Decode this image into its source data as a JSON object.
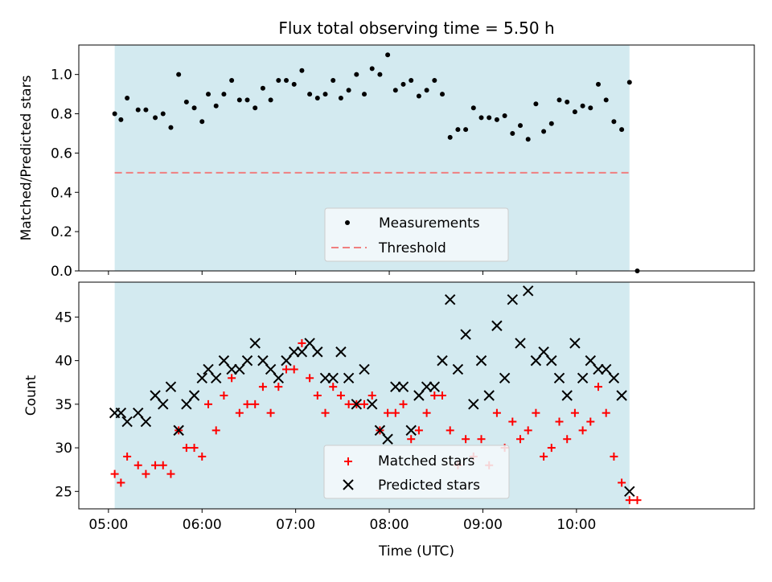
{
  "chart_data": [
    {
      "type": "scatter",
      "title": "Flux total observing time = 5.50 h",
      "xlabel": "",
      "ylabel": "Matched/Predicted stars",
      "ylim": [
        0,
        1.15
      ],
      "xlim_minutes": [
        281,
        714
      ],
      "yticks": [
        "0.0",
        "0.2",
        "0.4",
        "0.6",
        "0.8",
        "1.0"
      ],
      "ytick_values": [
        0,
        0.2,
        0.4,
        0.6,
        0.8,
        1.0
      ],
      "observing_window": [
        "05:04",
        "10:34"
      ],
      "observing_window_color": "#d3eaf0",
      "threshold": {
        "name": "Threshold",
        "value": 0.5,
        "color": "#f08080",
        "style": "dashed"
      },
      "legend": {
        "placement": "bottom-center",
        "entries": [
          "Measurements",
          "Threshold"
        ]
      },
      "series": [
        {
          "name": "Measurements",
          "marker": "dot",
          "color": "#000000",
          "points": [
            [
              "05:04",
              0.8
            ],
            [
              "05:08",
              0.77
            ],
            [
              "05:12",
              0.88
            ],
            [
              "05:19",
              0.82
            ],
            [
              "05:24",
              0.82
            ],
            [
              "05:30",
              0.78
            ],
            [
              "05:35",
              0.8
            ],
            [
              "05:40",
              0.73
            ],
            [
              "05:45",
              1.0
            ],
            [
              "05:50",
              0.86
            ],
            [
              "05:55",
              0.83
            ],
            [
              "06:00",
              0.76
            ],
            [
              "06:04",
              0.9
            ],
            [
              "06:09",
              0.84
            ],
            [
              "06:14",
              0.9
            ],
            [
              "06:19",
              0.97
            ],
            [
              "06:24",
              0.87
            ],
            [
              "06:29",
              0.87
            ],
            [
              "06:34",
              0.83
            ],
            [
              "06:39",
              0.93
            ],
            [
              "06:44",
              0.87
            ],
            [
              "06:49",
              0.97
            ],
            [
              "06:54",
              0.97
            ],
            [
              "06:59",
              0.95
            ],
            [
              "07:04",
              1.02
            ],
            [
              "07:09",
              0.9
            ],
            [
              "07:14",
              0.88
            ],
            [
              "07:19",
              0.9
            ],
            [
              "07:24",
              0.97
            ],
            [
              "07:29",
              0.88
            ],
            [
              "07:34",
              0.92
            ],
            [
              "07:39",
              1.0
            ],
            [
              "07:44",
              0.9
            ],
            [
              "07:49",
              1.03
            ],
            [
              "07:54",
              1.0
            ],
            [
              "07:59",
              1.1
            ],
            [
              "08:04",
              0.92
            ],
            [
              "08:09",
              0.95
            ],
            [
              "08:14",
              0.97
            ],
            [
              "08:19",
              0.89
            ],
            [
              "08:24",
              0.92
            ],
            [
              "08:29",
              0.97
            ],
            [
              "08:34",
              0.9
            ],
            [
              "08:39",
              0.68
            ],
            [
              "08:44",
              0.72
            ],
            [
              "08:49",
              0.72
            ],
            [
              "08:54",
              0.83
            ],
            [
              "08:59",
              0.78
            ],
            [
              "09:04",
              0.78
            ],
            [
              "09:09",
              0.77
            ],
            [
              "09:14",
              0.79
            ],
            [
              "09:19",
              0.7
            ],
            [
              "09:24",
              0.74
            ],
            [
              "09:29",
              0.67
            ],
            [
              "09:34",
              0.85
            ],
            [
              "09:39",
              0.71
            ],
            [
              "09:44",
              0.75
            ],
            [
              "09:49",
              0.87
            ],
            [
              "09:54",
              0.86
            ],
            [
              "09:59",
              0.81
            ],
            [
              "10:04",
              0.84
            ],
            [
              "10:09",
              0.83
            ],
            [
              "10:14",
              0.95
            ],
            [
              "10:19",
              0.87
            ],
            [
              "10:24",
              0.76
            ],
            [
              "10:29",
              0.72
            ],
            [
              "10:34",
              0.96
            ],
            [
              "10:39",
              0.0
            ]
          ]
        }
      ]
    },
    {
      "type": "scatter",
      "title": "",
      "xlabel": "Time (UTC)",
      "ylabel": "Count",
      "ylim": [
        23,
        49
      ],
      "xlim_minutes": [
        281,
        714
      ],
      "yticks": [
        "25",
        "30",
        "35",
        "40",
        "45"
      ],
      "ytick_values": [
        25,
        30,
        35,
        40,
        45
      ],
      "xticks": [
        "05:00",
        "06:00",
        "07:00",
        "08:00",
        "09:00",
        "10:00"
      ],
      "xtick_values": [
        300,
        360,
        420,
        480,
        540,
        600
      ],
      "observing_window": [
        "05:04",
        "10:34"
      ],
      "observing_window_color": "#d3eaf0",
      "legend": {
        "placement": "bottom-center",
        "entries": [
          "Matched stars",
          "Predicted stars"
        ]
      },
      "series": [
        {
          "name": "Matched stars",
          "marker": "plus",
          "color": "#ff0000",
          "points": [
            [
              "05:04",
              27
            ],
            [
              "05:08",
              26
            ],
            [
              "05:12",
              29
            ],
            [
              "05:19",
              28
            ],
            [
              "05:24",
              27
            ],
            [
              "05:30",
              28
            ],
            [
              "05:35",
              28
            ],
            [
              "05:40",
              27
            ],
            [
              "05:45",
              32
            ],
            [
              "05:50",
              30
            ],
            [
              "05:55",
              30
            ],
            [
              "06:00",
              29
            ],
            [
              "06:04",
              35
            ],
            [
              "06:09",
              32
            ],
            [
              "06:14",
              36
            ],
            [
              "06:19",
              38
            ],
            [
              "06:24",
              34
            ],
            [
              "06:29",
              35
            ],
            [
              "06:34",
              35
            ],
            [
              "06:39",
              37
            ],
            [
              "06:44",
              34
            ],
            [
              "06:49",
              37
            ],
            [
              "06:54",
              39
            ],
            [
              "06:59",
              39
            ],
            [
              "07:04",
              42
            ],
            [
              "07:09",
              38
            ],
            [
              "07:14",
              36
            ],
            [
              "07:19",
              34
            ],
            [
              "07:24",
              37
            ],
            [
              "07:29",
              36
            ],
            [
              "07:34",
              35
            ],
            [
              "07:39",
              35
            ],
            [
              "07:44",
              35
            ],
            [
              "07:49",
              36
            ],
            [
              "07:54",
              32
            ],
            [
              "07:59",
              34
            ],
            [
              "08:04",
              34
            ],
            [
              "08:09",
              35
            ],
            [
              "08:14",
              31
            ],
            [
              "08:19",
              32
            ],
            [
              "08:24",
              34
            ],
            [
              "08:29",
              36
            ],
            [
              "08:34",
              36
            ],
            [
              "08:39",
              32
            ],
            [
              "08:44",
              28
            ],
            [
              "08:49",
              31
            ],
            [
              "08:54",
              29
            ],
            [
              "08:59",
              31
            ],
            [
              "09:04",
              28
            ],
            [
              "09:09",
              34
            ],
            [
              "09:14",
              30
            ],
            [
              "09:19",
              33
            ],
            [
              "09:24",
              31
            ],
            [
              "09:29",
              32
            ],
            [
              "09:34",
              34
            ],
            [
              "09:39",
              29
            ],
            [
              "09:44",
              30
            ],
            [
              "09:49",
              33
            ],
            [
              "09:54",
              31
            ],
            [
              "09:59",
              34
            ],
            [
              "10:04",
              32
            ],
            [
              "10:09",
              33
            ],
            [
              "10:14",
              37
            ],
            [
              "10:19",
              34
            ],
            [
              "10:24",
              29
            ],
            [
              "10:29",
              26
            ],
            [
              "10:34",
              24
            ],
            [
              "10:39",
              24
            ]
          ]
        },
        {
          "name": "Predicted stars",
          "marker": "x",
          "color": "#000000",
          "points": [
            [
              "05:04",
              34
            ],
            [
              "05:08",
              34
            ],
            [
              "05:12",
              33
            ],
            [
              "05:19",
              34
            ],
            [
              "05:24",
              33
            ],
            [
              "05:30",
              36
            ],
            [
              "05:35",
              35
            ],
            [
              "05:40",
              37
            ],
            [
              "05:45",
              32
            ],
            [
              "05:50",
              35
            ],
            [
              "05:55",
              36
            ],
            [
              "06:00",
              38
            ],
            [
              "06:04",
              39
            ],
            [
              "06:09",
              38
            ],
            [
              "06:14",
              40
            ],
            [
              "06:19",
              39
            ],
            [
              "06:24",
              39
            ],
            [
              "06:29",
              40
            ],
            [
              "06:34",
              42
            ],
            [
              "06:39",
              40
            ],
            [
              "06:44",
              39
            ],
            [
              "06:49",
              38
            ],
            [
              "06:54",
              40
            ],
            [
              "06:59",
              41
            ],
            [
              "07:04",
              41
            ],
            [
              "07:09",
              42
            ],
            [
              "07:14",
              41
            ],
            [
              "07:19",
              38
            ],
            [
              "07:24",
              38
            ],
            [
              "07:29",
              41
            ],
            [
              "07:34",
              38
            ],
            [
              "07:39",
              35
            ],
            [
              "07:44",
              39
            ],
            [
              "07:49",
              35
            ],
            [
              "07:54",
              32
            ],
            [
              "07:59",
              31
            ],
            [
              "08:04",
              37
            ],
            [
              "08:09",
              37
            ],
            [
              "08:14",
              32
            ],
            [
              "08:19",
              36
            ],
            [
              "08:24",
              37
            ],
            [
              "08:29",
              37
            ],
            [
              "08:34",
              40
            ],
            [
              "08:39",
              47
            ],
            [
              "08:44",
              39
            ],
            [
              "08:49",
              43
            ],
            [
              "08:54",
              35
            ],
            [
              "08:59",
              40
            ],
            [
              "09:04",
              36
            ],
            [
              "09:09",
              44
            ],
            [
              "09:14",
              38
            ],
            [
              "09:19",
              47
            ],
            [
              "09:24",
              42
            ],
            [
              "09:29",
              48
            ],
            [
              "09:34",
              40
            ],
            [
              "09:39",
              41
            ],
            [
              "09:44",
              40
            ],
            [
              "09:49",
              38
            ],
            [
              "09:54",
              36
            ],
            [
              "09:59",
              42
            ],
            [
              "10:04",
              38
            ],
            [
              "10:09",
              40
            ],
            [
              "10:14",
              39
            ],
            [
              "10:19",
              39
            ],
            [
              "10:24",
              38
            ],
            [
              "10:29",
              36
            ],
            [
              "10:34",
              25
            ]
          ]
        }
      ]
    }
  ]
}
